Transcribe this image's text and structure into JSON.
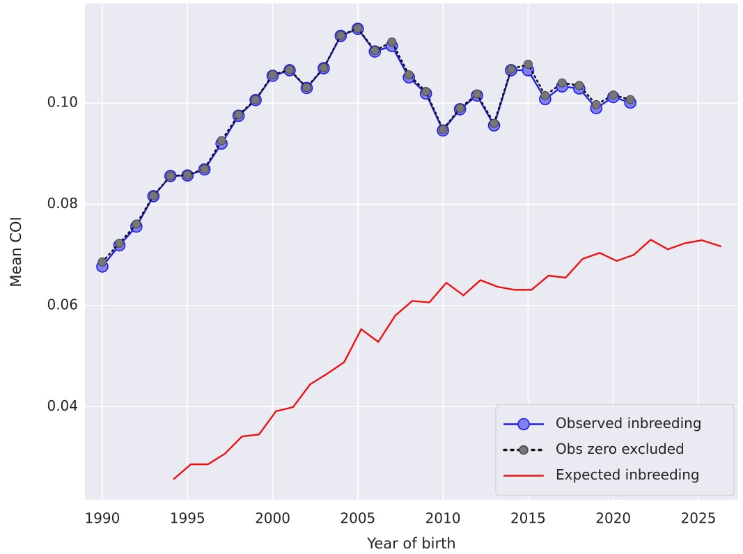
{
  "chart_data": {
    "type": "line",
    "x_label": "Year of birth",
    "y_label": "Mean COI",
    "xlim": [
      1988.98,
      2027.33
    ],
    "ylim": [
      0.0216,
      0.1197
    ],
    "xticks": [
      1990,
      1995,
      2000,
      2005,
      2010,
      2015,
      2020,
      2025
    ],
    "yticks": [
      0.04,
      0.06,
      0.08,
      {
        "value": 0.1,
        "label": "0.10"
      }
    ],
    "grid": true,
    "legend": "lower right",
    "background": "#eaeaf2",
    "series": [
      {
        "name": "Observed inbreeding",
        "color": "#1f1fe6",
        "marker_color": "#8080f0",
        "linestyle": "solid",
        "marker": true,
        "x": [
          1990,
          1991,
          1992,
          1993,
          1994,
          1995,
          1996,
          1997,
          1998,
          1999,
          2000,
          2001,
          2002,
          2003,
          2004,
          2005,
          2006,
          2007,
          2008,
          2009,
          2010,
          2011,
          2012,
          2013,
          2014,
          2015,
          2016,
          2017,
          2018,
          2019,
          2020,
          2021
        ],
        "values": [
          0.0677,
          0.0719,
          0.0756,
          0.0816,
          0.0856,
          0.0857,
          0.0869,
          0.092,
          0.0975,
          0.1006,
          0.1054,
          0.1065,
          0.103,
          0.1069,
          0.1133,
          0.1147,
          0.1102,
          0.1113,
          0.1051,
          0.1019,
          0.0946,
          0.0988,
          0.1015,
          0.0956,
          0.1065,
          0.1065,
          0.1008,
          0.1033,
          0.1029,
          0.099,
          0.1012,
          0.1001
        ]
      },
      {
        "name": "Obs zero excluded",
        "color": "#111111",
        "marker_color": "#777777",
        "linestyle": "dotted",
        "marker": true,
        "x": [
          1990,
          1991,
          1992,
          1993,
          1994,
          1995,
          1996,
          1997,
          1998,
          1999,
          2000,
          2001,
          2002,
          2003,
          2004,
          2005,
          2006,
          2007,
          2008,
          2009,
          2010,
          2011,
          2012,
          2013,
          2014,
          2015,
          2016,
          2017,
          2018,
          2019,
          2020,
          2021
        ],
        "values": [
          0.0686,
          0.0723,
          0.0761,
          0.0817,
          0.0856,
          0.0858,
          0.087,
          0.0926,
          0.0977,
          0.1007,
          0.1056,
          0.1066,
          0.1031,
          0.107,
          0.1134,
          0.1148,
          0.1104,
          0.1121,
          0.1056,
          0.1023,
          0.0948,
          0.099,
          0.1018,
          0.096,
          0.1067,
          0.1077,
          0.1015,
          0.104,
          0.1035,
          0.0997,
          0.1016,
          0.1007
        ]
      },
      {
        "name": "Expected inbreeding",
        "color": "#ee1111",
        "linestyle": "solid",
        "marker": false,
        "x": [
          1994.2,
          1995.2,
          1996.2,
          1997.2,
          1998.2,
          1999.2,
          2000.2,
          2001.2,
          2002.2,
          2003.2,
          2004.2,
          2005.2,
          2006.2,
          2007.2,
          2008.2,
          2009.2,
          2010.2,
          2011.2,
          2012.2,
          2013.2,
          2014.2,
          2015.2,
          2016.2,
          2017.2,
          2018.2,
          2019.2,
          2020.2,
          2021.2,
          2022.2,
          2023.2,
          2024.2,
          2025.2,
          2026.3
        ],
        "values": [
          0.0257,
          0.0286,
          0.0286,
          0.0307,
          0.0341,
          0.0345,
          0.0391,
          0.0399,
          0.0444,
          0.0465,
          0.0488,
          0.0553,
          0.0528,
          0.058,
          0.0609,
          0.0606,
          0.0645,
          0.062,
          0.065,
          0.0637,
          0.0631,
          0.0631,
          0.0659,
          0.0655,
          0.0692,
          0.0704,
          0.0688,
          0.07,
          0.073,
          0.0711,
          0.0723,
          0.0729,
          0.0717
        ]
      }
    ]
  }
}
